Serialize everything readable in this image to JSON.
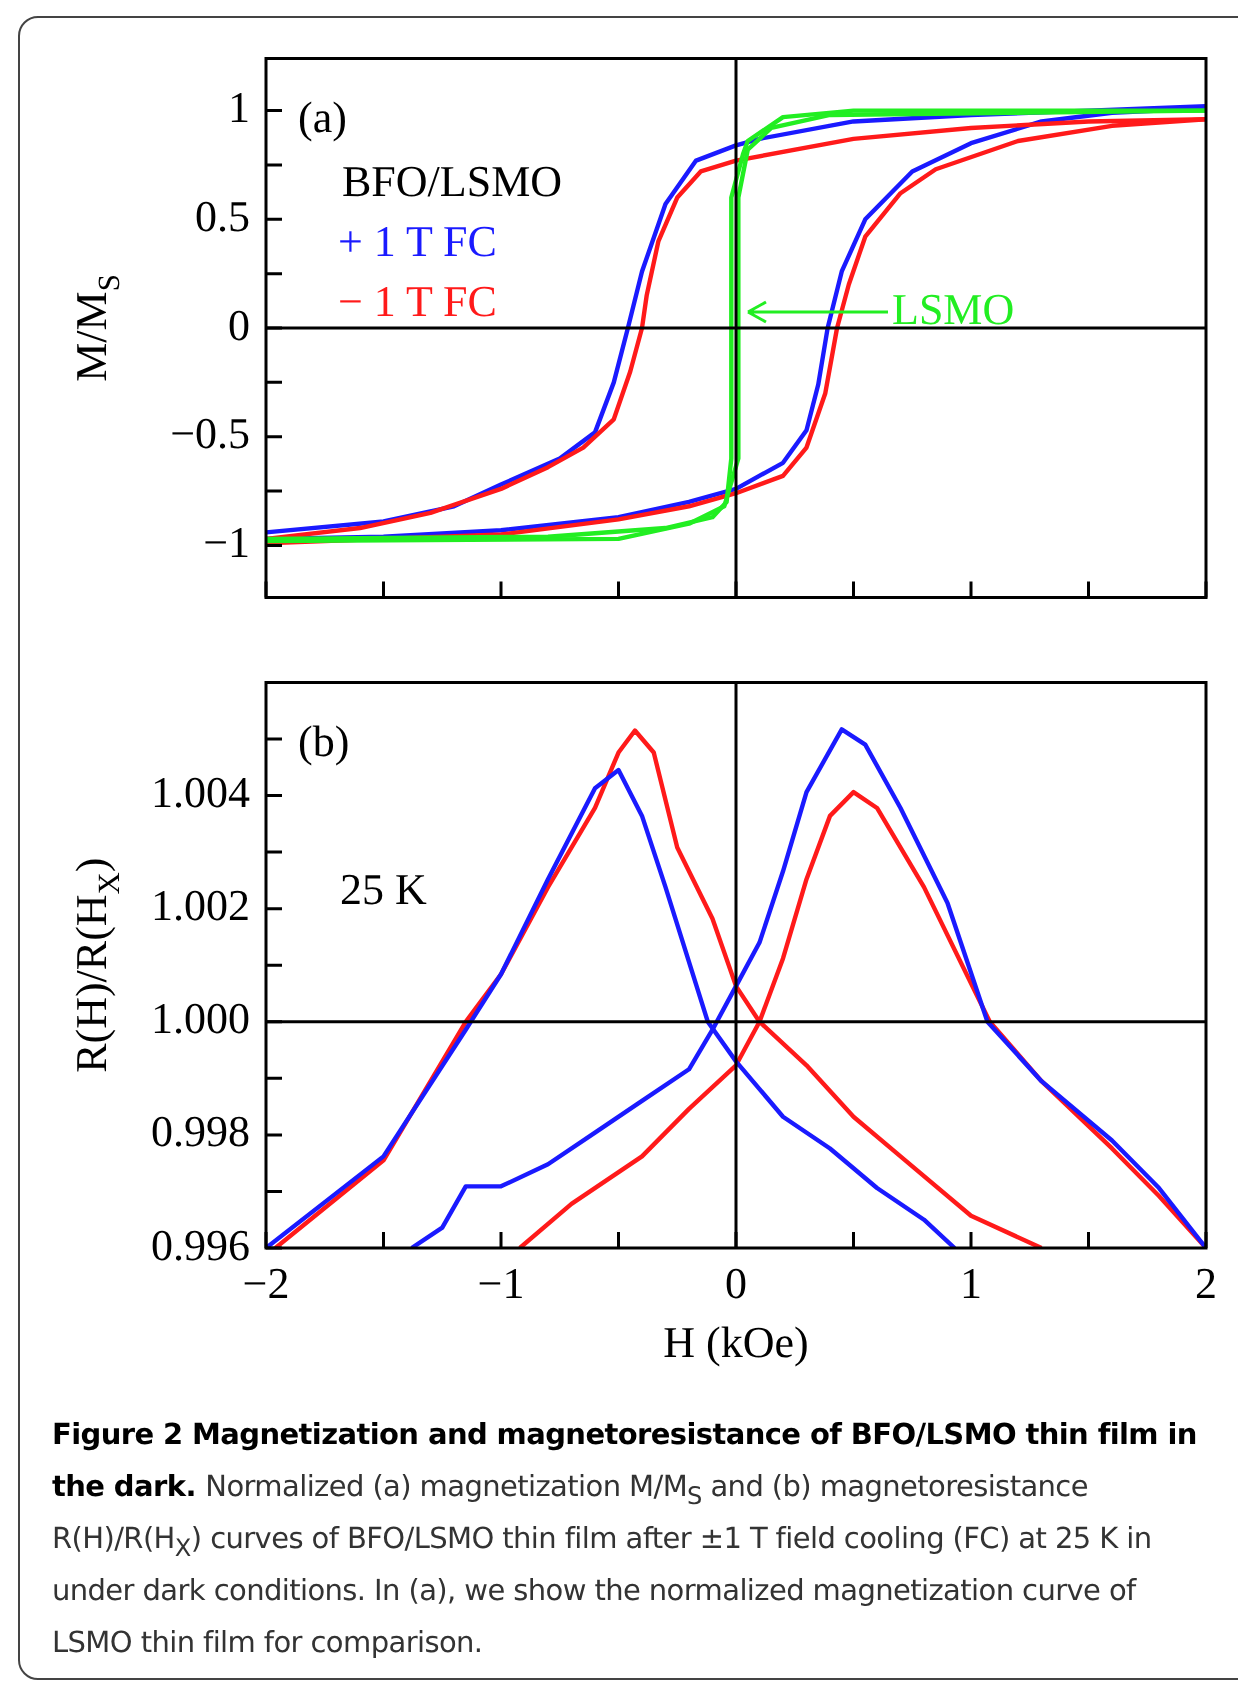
{
  "chart_data": [
    {
      "type": "line",
      "ylabel": "M/M$_{S}$",
      "legend_title": "BFO/LSMO",
      "legend": "top left",
      "tick_labels": "y",
      "xlim": [
        -2,
        2
      ],
      "xticks": [
        {
          "value": -2,
          "label": null
        },
        {
          "value": -1.5,
          "label": null
        },
        {
          "value": -1,
          "label": null
        },
        {
          "value": -0.5,
          "label": null
        },
        {
          "value": 0,
          "label": null
        },
        {
          "value": 0.5,
          "label": null
        },
        {
          "value": 1,
          "label": null
        },
        {
          "value": 1.5,
          "label": null
        },
        {
          "value": 2,
          "label": null
        }
      ],
      "ylim": [
        -1.24,
        1.24
      ],
      "yticks": [
        {
          "value": -1,
          "label": "−1"
        },
        {
          "value": -0.75,
          "label": null
        },
        {
          "value": -0.5,
          "label": "−0.5"
        },
        {
          "value": -0.25,
          "label": null
        },
        0,
        {
          "value": 0.25,
          "label": null
        },
        0.5,
        {
          "value": 0.75,
          "label": null
        },
        1
      ],
      "ref_lines": [
        {
          "axis": "x",
          "value": 0
        },
        {
          "axis": "y",
          "value": 0
        }
      ],
      "annotations": [
        "(a)",
        "LSMO"
      ],
      "series": [
        {
          "name": "+ 1 T FC",
          "color": "#1a1aff",
          "x": [
            -2,
            -1.5,
            -1.2,
            -1,
            -0.75,
            -0.6,
            -0.52,
            -0.46,
            -0.4,
            -0.3,
            -0.17,
            0,
            0.1,
            0.5,
            1,
            1.5,
            2
          ],
          "values": [
            -0.94,
            -0.89,
            -0.82,
            -0.72,
            -0.6,
            -0.48,
            -0.25,
            0,
            0.26,
            0.57,
            0.77,
            0.84,
            0.87,
            0.95,
            0.98,
            1,
            1.02
          ]
        },
        {
          "color": "#1a1aff",
          "x": [
            -2,
            -1.5,
            -1,
            -0.5,
            -0.2,
            0,
            0.2,
            0.3,
            0.35,
            0.39,
            0.45,
            0.55,
            0.75,
            1,
            1.3,
            1.6,
            2
          ],
          "values": [
            -0.97,
            -0.96,
            -0.93,
            -0.87,
            -0.8,
            -0.74,
            -0.62,
            -0.47,
            -0.26,
            0,
            0.26,
            0.5,
            0.72,
            0.85,
            0.95,
            0.99,
            1.01
          ]
        },
        {
          "name": "− 1 T FC",
          "color": "#ff1a1a",
          "x": [
            -2,
            -1.6,
            -1.3,
            -1,
            -0.8,
            -0.65,
            -0.52,
            -0.45,
            -0.4,
            -0.38,
            -0.33,
            -0.25,
            -0.15,
            0,
            0.5,
            1,
            1.5,
            2
          ],
          "values": [
            -0.97,
            -0.92,
            -0.85,
            -0.74,
            -0.64,
            -0.55,
            -0.42,
            -0.2,
            0,
            0.15,
            0.4,
            0.6,
            0.72,
            0.77,
            0.87,
            0.92,
            0.95,
            0.96
          ]
        },
        {
          "color": "#ff1a1a",
          "x": [
            -2,
            -1.5,
            -1,
            -0.5,
            -0.2,
            0,
            0.2,
            0.3,
            0.38,
            0.43,
            0.48,
            0.55,
            0.7,
            0.85,
            1.2,
            1.6,
            2
          ],
          "values": [
            -0.99,
            -0.97,
            -0.95,
            -0.88,
            -0.82,
            -0.76,
            -0.68,
            -0.55,
            -0.3,
            0,
            0.2,
            0.42,
            0.62,
            0.73,
            0.86,
            0.93,
            0.96
          ]
        },
        {
          "color": "#22ee22",
          "x": [
            -2,
            -0.8,
            -0.3,
            -0.1,
            -0.04,
            -0.02,
            -0.02,
            -0.02,
            -0.02,
            -0.02,
            0.03,
            0.05,
            0.2,
            0.5,
            2
          ],
          "values": [
            -0.97,
            -0.96,
            -0.92,
            -0.87,
            -0.8,
            -0.6,
            -0.3,
            0,
            0.3,
            0.6,
            0.8,
            0.86,
            0.97,
            1,
            1
          ]
        },
        {
          "color": "#22ee22",
          "x": [
            -2,
            -0.5,
            -0.2,
            -0.05,
            0.01,
            0.01,
            0.01,
            0.01,
            0.01,
            0.05,
            0.15,
            0.4,
            2
          ],
          "values": [
            -0.98,
            -0.97,
            -0.9,
            -0.82,
            -0.6,
            -0.3,
            0,
            0.3,
            0.6,
            0.82,
            0.92,
            0.98,
            1
          ]
        }
      ]
    },
    {
      "type": "line",
      "xlabel": "H (kOe)",
      "ylabel": "R(H)/R(H$_{X}$)",
      "xlim": [
        -2,
        2
      ],
      "xticks": [
        {
          "value": -2,
          "label": "−2"
        },
        {
          "value": -1.5,
          "label": null
        },
        {
          "value": -1,
          "label": "−1"
        },
        {
          "value": -0.5,
          "label": null
        },
        0,
        {
          "value": 0.5,
          "label": null
        },
        1,
        {
          "value": 1.5,
          "label": null
        },
        2
      ],
      "ylim": [
        0.996,
        1.006
      ],
      "yticks": [
        0.996,
        {
          "value": 0.997,
          "label": null
        },
        0.998,
        {
          "value": 0.999,
          "label": null
        },
        {
          "value": 1,
          "label": "1.000"
        },
        {
          "value": 1.001,
          "label": null
        },
        1.002,
        {
          "value": 1.003,
          "label": null
        },
        1.004,
        {
          "value": 1.005,
          "label": null
        }
      ],
      "ref_lines": [
        {
          "axis": "x",
          "value": 0
        },
        {
          "axis": "y",
          "value": 1
        }
      ],
      "annotations": [
        "(b)",
        "25 K",
        "Figure 2 Magnetization and magnetoresistance of BFO/LSMO thin film in the dark.",
        "Normalized (a) magnetization M/M$_{S}$ and (b) magnetoresistance R(H)/R(H$_{X}$) curves of BFO/LSMO thin film after ±1 T field cooling (FC) at 25 K in under dark conditions. In (a), we show the normalized magnetization curve of LSMO thin film for comparison."
      ],
      "series": [
        {
          "color": "#ff1a1a",
          "x": [
            -1.96,
            -1.5,
            -1.15,
            -1,
            -0.8,
            -0.6,
            -0.5,
            -0.43,
            -0.35,
            -0.25,
            -0.1,
            0,
            0.1,
            0.3,
            0.5,
            0.7,
            1,
            1.3
          ],
          "values": [
            0.996,
            0.99755,
            1,
            1.00084,
            1.00238,
            1.00378,
            1.00476,
            1.00515,
            1.00476,
            1.00308,
            1.00182,
            1.00063,
            1,
            0.99923,
            0.99832,
            0.99762,
            0.99657,
            0.996
          ]
        },
        {
          "color": "#ff1a1a",
          "x": [
            -0.92,
            -0.7,
            -0.4,
            -0.2,
            0,
            0.1,
            0.2,
            0.3,
            0.4,
            0.5,
            0.6,
            0.8,
            1.08,
            1.3,
            1.6,
            1.8,
            2
          ],
          "values": [
            0.996,
            0.99678,
            0.99762,
            0.99846,
            0.99923,
            1,
            1.00112,
            1.00252,
            1.00364,
            1.00406,
            1.00378,
            1.00238,
            1,
            0.99895,
            0.99776,
            0.99692,
            0.996
          ]
        },
        {
          "color": "#1a1aff",
          "x": [
            -2,
            -1.5,
            -1.15,
            -1,
            -0.8,
            -0.6,
            -0.5,
            -0.4,
            -0.3,
            -0.12,
            0,
            0.2,
            0.4,
            0.6,
            0.8,
            0.93
          ],
          "values": [
            0.996,
            0.99762,
            0.99986,
            1.00084,
            1.00252,
            1.00413,
            1.00445,
            1.00364,
            1.00238,
            1,
            0.9993,
            0.99832,
            0.99776,
            0.99706,
            0.9965,
            0.996
          ]
        },
        {
          "color": "#1a1aff",
          "x": [
            -1.38,
            -1.25,
            -1.15,
            -1,
            -0.8,
            -0.6,
            -0.4,
            -0.2,
            -0.1,
            0,
            0.1,
            0.2,
            0.3,
            0.45,
            0.55,
            0.7,
            0.9,
            1.07,
            1.3,
            1.6,
            1.8,
            2
          ],
          "values": [
            0.996,
            0.99636,
            0.99709,
            0.99709,
            0.99748,
            0.99804,
            0.9986,
            0.99916,
            0.99986,
            1.00063,
            1.0014,
            1.00266,
            1.00406,
            1.00517,
            1.0049,
            1.00378,
            1.0021,
            1,
            0.99895,
            0.9979,
            0.99706,
            0.996
          ]
        }
      ]
    }
  ]
}
